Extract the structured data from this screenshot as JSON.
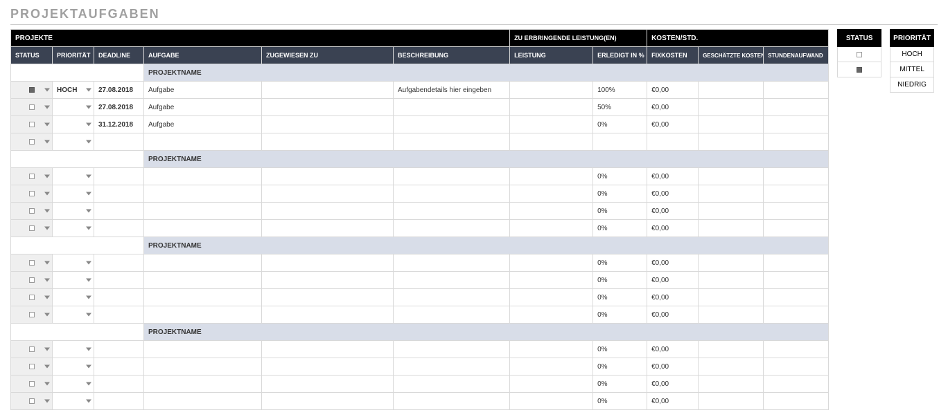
{
  "title": "PROJEKTAUFGABEN",
  "header1": {
    "projekte": "PROJEKTE",
    "leistungen": "ZU ERBRINGENDE LEISTUNG(EN)",
    "kosten": "KOSTEN/STD."
  },
  "header2": {
    "status": "STATUS",
    "prioritaet": "PRIORITÄT",
    "deadline": "DEADLINE",
    "aufgabe": "AUFGABE",
    "zugewiesen": "ZUGEWIESEN ZU",
    "beschreibung": "BESCHREIBUNG",
    "leistung": "LEISTUNG",
    "erledigt": "ERLEDIGT IN %",
    "fixkosten": "FIXKOSTEN",
    "geschaetzte": "GESCHÄTZTE KOSTEN",
    "stunden": "STUNDENAUFWAND"
  },
  "section_label": "PROJEKTNAME",
  "groups": [
    {
      "rows": [
        {
          "status_checked": true,
          "prioritaet": "HOCH",
          "deadline": "27.08.2018",
          "aufgabe": "Aufgabe",
          "zugewiesen": "",
          "beschreibung": "Aufgabendetails hier eingeben",
          "leistung": "",
          "erledigt": "100%",
          "fixkosten": "€0,00",
          "geschaetzte": "",
          "stunden": ""
        },
        {
          "status_checked": false,
          "prioritaet": "",
          "deadline": "27.08.2018",
          "aufgabe": "Aufgabe",
          "zugewiesen": "",
          "beschreibung": "",
          "leistung": "",
          "erledigt": "50%",
          "fixkosten": "€0,00",
          "geschaetzte": "",
          "stunden": ""
        },
        {
          "status_checked": false,
          "prioritaet": "",
          "deadline": "31.12.2018",
          "aufgabe": "Aufgabe",
          "zugewiesen": "",
          "beschreibung": "",
          "leistung": "",
          "erledigt": "0%",
          "fixkosten": "€0,00",
          "geschaetzte": "",
          "stunden": ""
        },
        {
          "status_checked": false,
          "prioritaet": "",
          "deadline": "",
          "aufgabe": "",
          "zugewiesen": "",
          "beschreibung": "",
          "leistung": "",
          "erledigt": "",
          "fixkosten": "",
          "geschaetzte": "",
          "stunden": ""
        }
      ]
    },
    {
      "rows": [
        {
          "status_checked": false,
          "prioritaet": "",
          "deadline": "",
          "aufgabe": "",
          "zugewiesen": "",
          "beschreibung": "",
          "leistung": "",
          "erledigt": "0%",
          "fixkosten": "€0,00",
          "geschaetzte": "",
          "stunden": ""
        },
        {
          "status_checked": false,
          "prioritaet": "",
          "deadline": "",
          "aufgabe": "",
          "zugewiesen": "",
          "beschreibung": "",
          "leistung": "",
          "erledigt": "0%",
          "fixkosten": "€0,00",
          "geschaetzte": "",
          "stunden": ""
        },
        {
          "status_checked": false,
          "prioritaet": "",
          "deadline": "",
          "aufgabe": "",
          "zugewiesen": "",
          "beschreibung": "",
          "leistung": "",
          "erledigt": "0%",
          "fixkosten": "€0,00",
          "geschaetzte": "",
          "stunden": ""
        },
        {
          "status_checked": false,
          "prioritaet": "",
          "deadline": "",
          "aufgabe": "",
          "zugewiesen": "",
          "beschreibung": "",
          "leistung": "",
          "erledigt": "0%",
          "fixkosten": "€0,00",
          "geschaetzte": "",
          "stunden": ""
        }
      ]
    },
    {
      "rows": [
        {
          "status_checked": false,
          "prioritaet": "",
          "deadline": "",
          "aufgabe": "",
          "zugewiesen": "",
          "beschreibung": "",
          "leistung": "",
          "erledigt": "0%",
          "fixkosten": "€0,00",
          "geschaetzte": "",
          "stunden": ""
        },
        {
          "status_checked": false,
          "prioritaet": "",
          "deadline": "",
          "aufgabe": "",
          "zugewiesen": "",
          "beschreibung": "",
          "leistung": "",
          "erledigt": "0%",
          "fixkosten": "€0,00",
          "geschaetzte": "",
          "stunden": ""
        },
        {
          "status_checked": false,
          "prioritaet": "",
          "deadline": "",
          "aufgabe": "",
          "zugewiesen": "",
          "beschreibung": "",
          "leistung": "",
          "erledigt": "0%",
          "fixkosten": "€0,00",
          "geschaetzte": "",
          "stunden": ""
        },
        {
          "status_checked": false,
          "prioritaet": "",
          "deadline": "",
          "aufgabe": "",
          "zugewiesen": "",
          "beschreibung": "",
          "leistung": "",
          "erledigt": "0%",
          "fixkosten": "€0,00",
          "geschaetzte": "",
          "stunden": ""
        }
      ]
    },
    {
      "rows": [
        {
          "status_checked": false,
          "prioritaet": "",
          "deadline": "",
          "aufgabe": "",
          "zugewiesen": "",
          "beschreibung": "",
          "leistung": "",
          "erledigt": "0%",
          "fixkosten": "€0,00",
          "geschaetzte": "",
          "stunden": ""
        },
        {
          "status_checked": false,
          "prioritaet": "",
          "deadline": "",
          "aufgabe": "",
          "zugewiesen": "",
          "beschreibung": "",
          "leistung": "",
          "erledigt": "0%",
          "fixkosten": "€0,00",
          "geschaetzte": "",
          "stunden": ""
        },
        {
          "status_checked": false,
          "prioritaet": "",
          "deadline": "",
          "aufgabe": "",
          "zugewiesen": "",
          "beschreibung": "",
          "leistung": "",
          "erledigt": "0%",
          "fixkosten": "€0,00",
          "geschaetzte": "",
          "stunden": ""
        },
        {
          "status_checked": false,
          "prioritaet": "",
          "deadline": "",
          "aufgabe": "",
          "zugewiesen": "",
          "beschreibung": "",
          "leistung": "",
          "erledigt": "0%",
          "fixkosten": "€0,00",
          "geschaetzte": "",
          "stunden": ""
        }
      ]
    }
  ],
  "legend": {
    "status_label": "STATUS",
    "prio_label": "PRIORITÄT",
    "status_items": [
      {
        "checked": false
      },
      {
        "checked": true
      }
    ],
    "prio_items": [
      "HOCH",
      "MITTEL",
      "NIEDRIG"
    ]
  },
  "colors": {
    "hdr1_bg": "#000000",
    "hdr2_bg": "#3a4252",
    "section_bg": "#d8dde8",
    "status_bg": "#efefef",
    "border": "#d9d9d9",
    "title": "#a0a0a0"
  }
}
